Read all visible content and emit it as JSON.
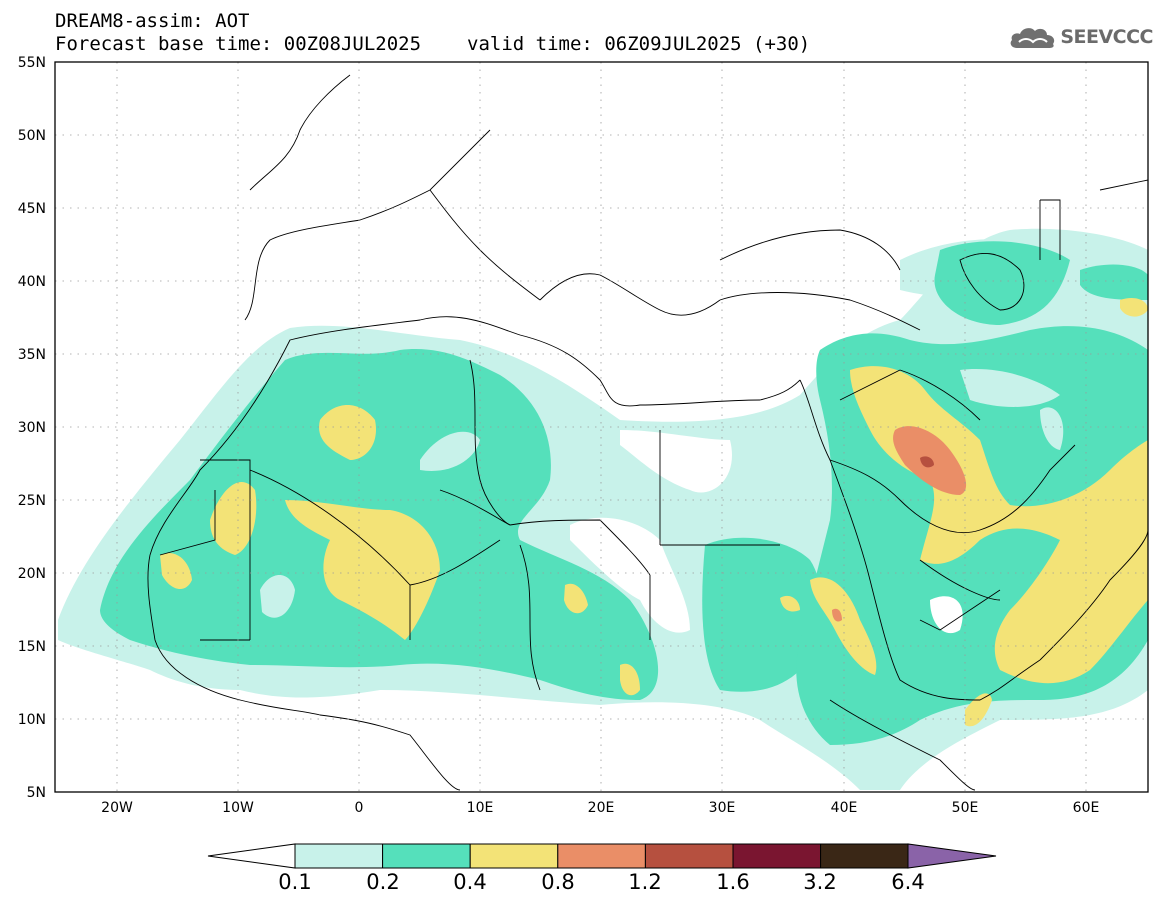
{
  "header": {
    "title": "DREAM8-assim: AOT",
    "base_time_label": "Forecast base time: 00Z08JUL2025",
    "valid_time_label": "valid time: 06Z09JUL2025 (+30)"
  },
  "logo": {
    "text": "SEEVCCC",
    "icon": "cloud-icon"
  },
  "map": {
    "variable": "AOT",
    "projection": "lat-lon",
    "lon_range": [
      -25,
      65
    ],
    "lat_range": [
      5,
      55
    ],
    "lat_ticks": [
      "55N",
      "50N",
      "45N",
      "40N",
      "35N",
      "30N",
      "25N",
      "20N",
      "15N",
      "10N",
      "5N"
    ],
    "lon_ticks": [
      "20W",
      "10W",
      "0",
      "10E",
      "20E",
      "30E",
      "40E",
      "50E",
      "60E"
    ]
  },
  "colorbar": {
    "levels": [
      "0.1",
      "0.2",
      "0.4",
      "0.8",
      "1.2",
      "1.6",
      "3.2",
      "6.4"
    ],
    "colors": [
      "#c8f2ea",
      "#55e0bb",
      "#f3e377",
      "#ea8e67",
      "#b6503f",
      "#7a1530",
      "#3a2716",
      "#8a63a8"
    ],
    "low_color": "#ffffff"
  }
}
